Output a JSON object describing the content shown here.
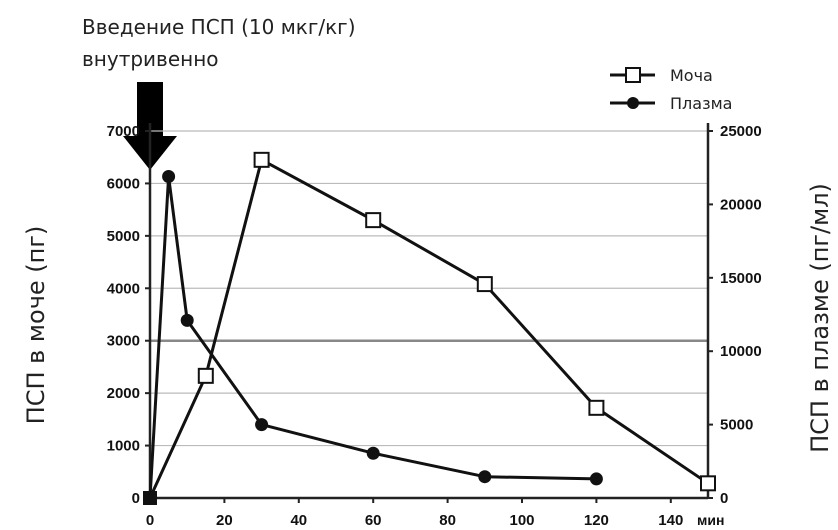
{
  "chart_data": {
    "type": "line",
    "annotation": {
      "line1": "Введение ПСП (10 мкг/кг)",
      "line2": "внутривенно",
      "arrow_at_x": 0
    },
    "x": {
      "unit_label": "мин",
      "range": [
        0,
        150
      ],
      "ticks": [
        0,
        20,
        40,
        60,
        80,
        100,
        120,
        140
      ]
    },
    "y_left": {
      "label": "ПСП в моче (пг)",
      "range": [
        0,
        7000
      ],
      "ticks": [
        0,
        1000,
        2000,
        3000,
        4000,
        5000,
        6000,
        7000
      ]
    },
    "y_right": {
      "label": "ПСП в плазме (пг/мл)",
      "range": [
        0,
        25000
      ],
      "ticks": [
        0,
        5000,
        10000,
        15000,
        20000,
        25000
      ]
    },
    "grid": true,
    "legend_position": "top-right",
    "series": [
      {
        "name": "Моча",
        "axis": "left",
        "marker": "open-square",
        "points": [
          [
            0,
            0
          ],
          [
            15,
            2330
          ],
          [
            30,
            6450
          ],
          [
            60,
            5300
          ],
          [
            90,
            4080
          ],
          [
            120,
            1720
          ],
          [
            150,
            280
          ]
        ]
      },
      {
        "name": "Плазма",
        "axis": "right",
        "marker": "filled-circle",
        "points": [
          [
            0,
            0
          ],
          [
            5,
            21900
          ],
          [
            10,
            12100
          ],
          [
            30,
            5000
          ],
          [
            60,
            3050
          ],
          [
            90,
            1450
          ],
          [
            120,
            1300
          ]
        ]
      }
    ]
  }
}
